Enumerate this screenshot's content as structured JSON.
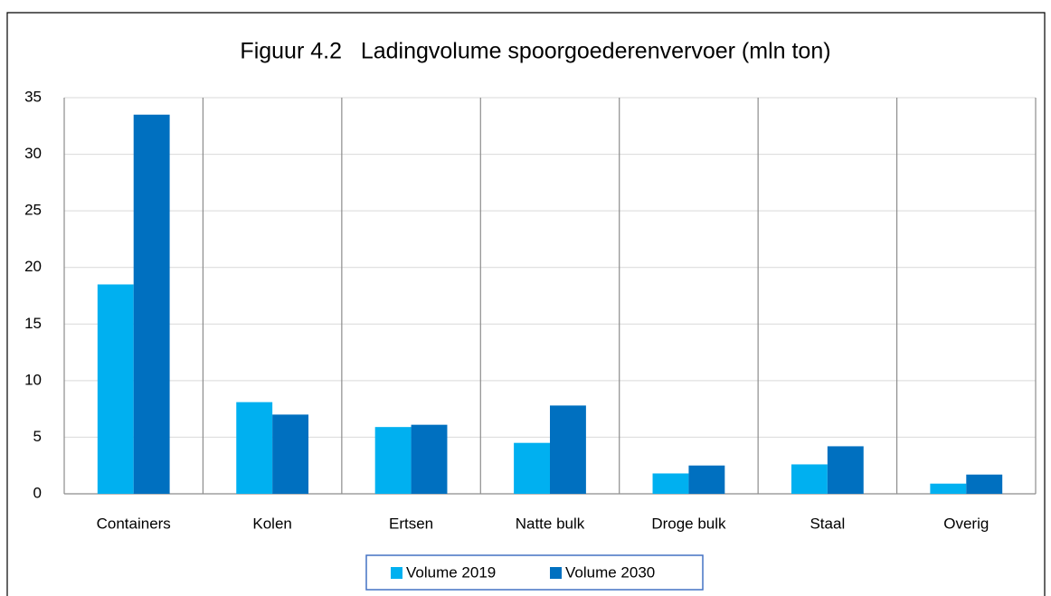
{
  "chart_data": {
    "type": "bar",
    "title": "Figuur 4.2   Ladingvolume spoorgoederenvervoer (mln ton)",
    "categories": [
      "Containers",
      "Kolen",
      "Ertsen",
      "Natte bulk",
      "Droge bulk",
      "Staal",
      "Overig"
    ],
    "series": [
      {
        "name": "Volume 2019",
        "color": "#00b0f0",
        "values": [
          18.5,
          8.1,
          5.9,
          4.5,
          1.8,
          2.6,
          0.9
        ]
      },
      {
        "name": "Volume 2030",
        "color": "#0070c0",
        "values": [
          33.5,
          7.0,
          6.1,
          7.8,
          2.5,
          4.2,
          1.7
        ]
      }
    ],
    "ylim": [
      0,
      35
    ],
    "yticks": [
      0,
      5,
      10,
      15,
      20,
      25,
      30,
      35
    ],
    "grid": true,
    "legend": "bottom"
  }
}
